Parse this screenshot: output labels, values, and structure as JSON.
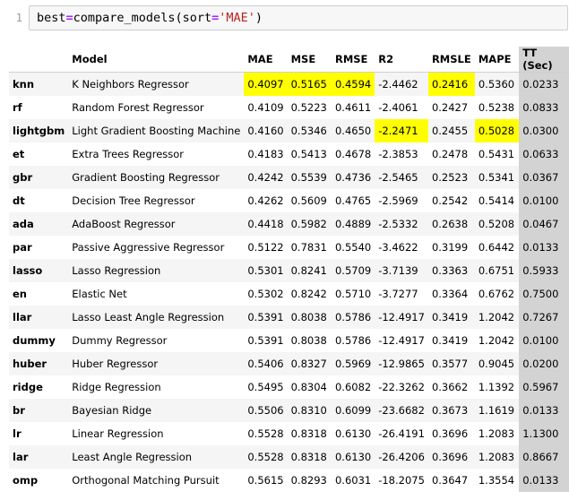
{
  "code_cell": {
    "line_number": "1",
    "code": {
      "var": "best",
      "op": "=",
      "call": "compare_models(sort",
      "op2": "=",
      "arg": "'MAE'",
      "close": ")"
    }
  },
  "table": {
    "columns": [
      "",
      "Model",
      "MAE",
      "MSE",
      "RMSE",
      "R2",
      "RMSLE",
      "MAPE",
      "TT (Sec)"
    ],
    "highlight_color": "#ffff00",
    "tt_column_color": "#d3d3d3",
    "rows": [
      {
        "id": "knn",
        "model": "K Neighbors Regressor",
        "mae": "0.4097",
        "mse": "0.5165",
        "rmse": "0.4594",
        "r2": "-2.4462",
        "rmsle": "0.2416",
        "mape": "0.5360",
        "tt": "0.0233",
        "hl": [
          "mae",
          "mse",
          "rmse",
          "rmsle"
        ]
      },
      {
        "id": "rf",
        "model": "Random Forest Regressor",
        "mae": "0.4109",
        "mse": "0.5223",
        "rmse": "0.4611",
        "r2": "-2.4061",
        "rmsle": "0.2427",
        "mape": "0.5238",
        "tt": "0.0833",
        "hl": []
      },
      {
        "id": "lightgbm",
        "model": "Light Gradient Boosting Machine",
        "mae": "0.4160",
        "mse": "0.5346",
        "rmse": "0.4650",
        "r2": "-2.2471",
        "rmsle": "0.2455",
        "mape": "0.5028",
        "tt": "0.0300",
        "hl": [
          "r2",
          "mape"
        ]
      },
      {
        "id": "et",
        "model": "Extra Trees Regressor",
        "mae": "0.4183",
        "mse": "0.5413",
        "rmse": "0.4678",
        "r2": "-2.3853",
        "rmsle": "0.2478",
        "mape": "0.5431",
        "tt": "0.0633",
        "hl": []
      },
      {
        "id": "gbr",
        "model": "Gradient Boosting Regressor",
        "mae": "0.4242",
        "mse": "0.5539",
        "rmse": "0.4736",
        "r2": "-2.5465",
        "rmsle": "0.2523",
        "mape": "0.5341",
        "tt": "0.0367",
        "hl": []
      },
      {
        "id": "dt",
        "model": "Decision Tree Regressor",
        "mae": "0.4262",
        "mse": "0.5609",
        "rmse": "0.4765",
        "r2": "-2.5969",
        "rmsle": "0.2542",
        "mape": "0.5414",
        "tt": "0.0100",
        "hl": []
      },
      {
        "id": "ada",
        "model": "AdaBoost Regressor",
        "mae": "0.4418",
        "mse": "0.5982",
        "rmse": "0.4889",
        "r2": "-2.5332",
        "rmsle": "0.2638",
        "mape": "0.5208",
        "tt": "0.0467",
        "hl": []
      },
      {
        "id": "par",
        "model": "Passive Aggressive Regressor",
        "mae": "0.5122",
        "mse": "0.7831",
        "rmse": "0.5540",
        "r2": "-3.4622",
        "rmsle": "0.3199",
        "mape": "0.6442",
        "tt": "0.0133",
        "hl": []
      },
      {
        "id": "lasso",
        "model": "Lasso Regression",
        "mae": "0.5301",
        "mse": "0.8241",
        "rmse": "0.5709",
        "r2": "-3.7139",
        "rmsle": "0.3363",
        "mape": "0.6751",
        "tt": "0.5933",
        "hl": []
      },
      {
        "id": "en",
        "model": "Elastic Net",
        "mae": "0.5302",
        "mse": "0.8242",
        "rmse": "0.5710",
        "r2": "-3.7277",
        "rmsle": "0.3364",
        "mape": "0.6762",
        "tt": "0.7500",
        "hl": []
      },
      {
        "id": "llar",
        "model": "Lasso Least Angle Regression",
        "mae": "0.5391",
        "mse": "0.8038",
        "rmse": "0.5786",
        "r2": "-12.4917",
        "rmsle": "0.3419",
        "mape": "1.2042",
        "tt": "0.7267",
        "hl": []
      },
      {
        "id": "dummy",
        "model": "Dummy Regressor",
        "mae": "0.5391",
        "mse": "0.8038",
        "rmse": "0.5786",
        "r2": "-12.4917",
        "rmsle": "0.3419",
        "mape": "1.2042",
        "tt": "0.0100",
        "hl": []
      },
      {
        "id": "huber",
        "model": "Huber Regressor",
        "mae": "0.5406",
        "mse": "0.8327",
        "rmse": "0.5969",
        "r2": "-12.9865",
        "rmsle": "0.3577",
        "mape": "0.9045",
        "tt": "0.0200",
        "hl": []
      },
      {
        "id": "ridge",
        "model": "Ridge Regression",
        "mae": "0.5495",
        "mse": "0.8304",
        "rmse": "0.6082",
        "r2": "-22.3262",
        "rmsle": "0.3662",
        "mape": "1.1392",
        "tt": "0.5967",
        "hl": []
      },
      {
        "id": "br",
        "model": "Bayesian Ridge",
        "mae": "0.5506",
        "mse": "0.8310",
        "rmse": "0.6099",
        "r2": "-23.6682",
        "rmsle": "0.3673",
        "mape": "1.1619",
        "tt": "0.0133",
        "hl": []
      },
      {
        "id": "lr",
        "model": "Linear Regression",
        "mae": "0.5528",
        "mse": "0.8318",
        "rmse": "0.6130",
        "r2": "-26.4191",
        "rmsle": "0.3696",
        "mape": "1.2083",
        "tt": "1.1300",
        "hl": []
      },
      {
        "id": "lar",
        "model": "Least Angle Regression",
        "mae": "0.5528",
        "mse": "0.8318",
        "rmse": "0.6130",
        "r2": "-26.4206",
        "rmsle": "0.3696",
        "mape": "1.2083",
        "tt": "0.8667",
        "hl": []
      },
      {
        "id": "omp",
        "model": "Orthogonal Matching Pursuit",
        "mae": "0.5615",
        "mse": "0.8293",
        "rmse": "0.6031",
        "r2": "-18.2075",
        "rmsle": "0.3647",
        "mape": "1.3554",
        "tt": "0.0133",
        "hl": []
      }
    ]
  }
}
